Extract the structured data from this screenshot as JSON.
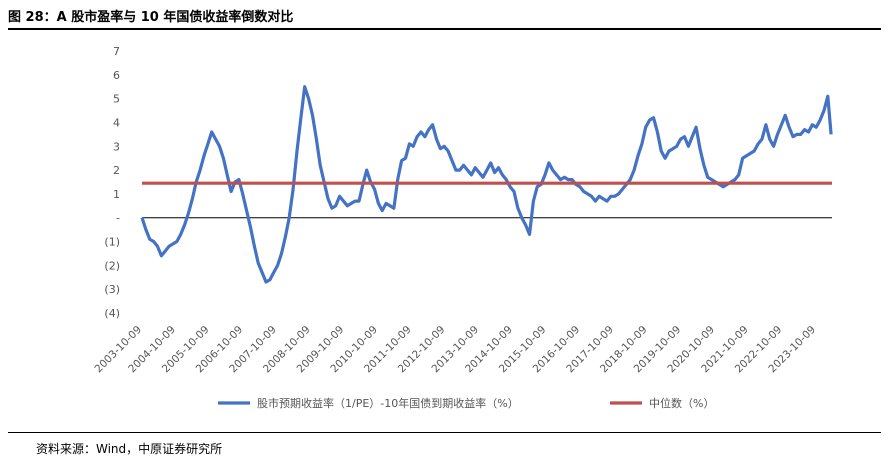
{
  "title": "图 28：A 股市盈率与 10 年国债收益率倒数对比",
  "source": "资料来源：Wind，中原证券研究所",
  "chart_data": {
    "type": "line",
    "title": "图 28：A 股市盈率与 10 年国债收益率倒数对比",
    "xlabel": "",
    "ylabel": "",
    "ylim": [
      -4,
      7
    ],
    "y_ticks": [
      7,
      6,
      5,
      4,
      3,
      2,
      1,
      0,
      -1,
      -2,
      -3,
      -4
    ],
    "y_tick_labels": [
      "7",
      "6",
      "5",
      "4",
      "3",
      "2",
      "1",
      "-",
      "(1)",
      "(2)",
      "(3)",
      "(4)"
    ],
    "x_tick_labels": [
      "2003-10-09",
      "2004-10-09",
      "2005-10-09",
      "2006-10-09",
      "2007-10-09",
      "2008-10-09",
      "2009-10-09",
      "2010-10-09",
      "2011-10-09",
      "2012-10-09",
      "2013-10-09",
      "2014-10-09",
      "2015-10-09",
      "2016-10-09",
      "2017-10-09",
      "2018-10-09",
      "2019-10-09",
      "2020-10-09",
      "2021-10-09",
      "2022-10-09",
      "2023-10-09"
    ],
    "xlim": [
      "2003-10-09",
      "2024-03-31"
    ],
    "legend_position": "bottom",
    "grid": false,
    "series": [
      {
        "name": "股市预期收益率（1/PE）-10年国债到期收益率（%）",
        "color": "#4472C4",
        "points": [
          [
            "2003-10-09",
            0.0
          ],
          [
            "2003-11-20",
            -0.5
          ],
          [
            "2004-01-01",
            -0.9
          ],
          [
            "2004-02-12",
            -1.0
          ],
          [
            "2004-03-25",
            -1.2
          ],
          [
            "2004-05-06",
            -1.6
          ],
          [
            "2004-06-17",
            -1.4
          ],
          [
            "2004-07-29",
            -1.2
          ],
          [
            "2004-09-09",
            -1.1
          ],
          [
            "2004-10-21",
            -1.0
          ],
          [
            "2004-12-02",
            -0.7
          ],
          [
            "2005-01-13",
            -0.3
          ],
          [
            "2005-02-24",
            0.2
          ],
          [
            "2005-04-07",
            0.8
          ],
          [
            "2005-05-19",
            1.5
          ],
          [
            "2005-06-30",
            2.0
          ],
          [
            "2005-08-11",
            2.6
          ],
          [
            "2005-09-22",
            3.1
          ],
          [
            "2005-11-03",
            3.6
          ],
          [
            "2005-12-15",
            3.3
          ],
          [
            "2006-01-26",
            3.0
          ],
          [
            "2006-03-09",
            2.5
          ],
          [
            "2006-04-20",
            1.8
          ],
          [
            "2006-06-01",
            1.1
          ],
          [
            "2006-07-13",
            1.5
          ],
          [
            "2006-08-24",
            1.6
          ],
          [
            "2006-10-05",
            1.0
          ],
          [
            "2006-11-16",
            0.3
          ],
          [
            "2006-12-28",
            -0.4
          ],
          [
            "2007-02-08",
            -1.2
          ],
          [
            "2007-03-22",
            -1.9
          ],
          [
            "2007-05-03",
            -2.3
          ],
          [
            "2007-06-14",
            -2.7
          ],
          [
            "2007-07-26",
            -2.6
          ],
          [
            "2007-09-06",
            -2.3
          ],
          [
            "2007-10-18",
            -2.0
          ],
          [
            "2007-11-29",
            -1.5
          ],
          [
            "2008-01-10",
            -0.8
          ],
          [
            "2008-02-21",
            0.0
          ],
          [
            "2008-04-03",
            1.2
          ],
          [
            "2008-05-15",
            2.8
          ],
          [
            "2008-06-26",
            4.2
          ],
          [
            "2008-08-07",
            5.5
          ],
          [
            "2008-09-18",
            5.0
          ],
          [
            "2008-10-30",
            4.3
          ],
          [
            "2008-12-11",
            3.3
          ],
          [
            "2009-01-22",
            2.2
          ],
          [
            "2009-03-05",
            1.5
          ],
          [
            "2009-04-16",
            0.8
          ],
          [
            "2009-05-28",
            0.4
          ],
          [
            "2009-07-09",
            0.5
          ],
          [
            "2009-08-20",
            0.9
          ],
          [
            "2009-10-01",
            0.7
          ],
          [
            "2009-11-12",
            0.5
          ],
          [
            "2009-12-24",
            0.6
          ],
          [
            "2010-02-04",
            0.7
          ],
          [
            "2010-03-18",
            0.7
          ],
          [
            "2010-04-29",
            1.4
          ],
          [
            "2010-06-10",
            2.0
          ],
          [
            "2010-07-22",
            1.5
          ],
          [
            "2010-09-02",
            1.2
          ],
          [
            "2010-10-14",
            0.6
          ],
          [
            "2010-11-25",
            0.3
          ],
          [
            "2011-01-06",
            0.6
          ],
          [
            "2011-02-17",
            0.5
          ],
          [
            "2011-03-31",
            0.4
          ],
          [
            "2011-05-12",
            1.6
          ],
          [
            "2011-06-23",
            2.4
          ],
          [
            "2011-08-04",
            2.5
          ],
          [
            "2011-09-15",
            3.1
          ],
          [
            "2011-10-27",
            3.0
          ],
          [
            "2011-12-08",
            3.4
          ],
          [
            "2012-01-19",
            3.6
          ],
          [
            "2012-03-01",
            3.4
          ],
          [
            "2012-04-12",
            3.7
          ],
          [
            "2012-05-24",
            3.9
          ],
          [
            "2012-07-05",
            3.3
          ],
          [
            "2012-08-16",
            2.9
          ],
          [
            "2012-09-27",
            3.0
          ],
          [
            "2012-11-08",
            2.8
          ],
          [
            "2012-12-20",
            2.4
          ],
          [
            "2013-01-31",
            2.0
          ],
          [
            "2013-03-14",
            2.0
          ],
          [
            "2013-04-25",
            2.2
          ],
          [
            "2013-06-06",
            2.0
          ],
          [
            "2013-07-18",
            1.8
          ],
          [
            "2013-08-29",
            2.1
          ],
          [
            "2013-10-10",
            1.9
          ],
          [
            "2013-11-21",
            1.7
          ],
          [
            "2014-01-02",
            2.0
          ],
          [
            "2014-02-13",
            2.3
          ],
          [
            "2014-03-27",
            1.9
          ],
          [
            "2014-05-08",
            2.1
          ],
          [
            "2014-06-19",
            1.8
          ],
          [
            "2014-07-31",
            1.6
          ],
          [
            "2014-09-11",
            1.3
          ],
          [
            "2014-10-23",
            1.1
          ],
          [
            "2014-12-04",
            0.4
          ],
          [
            "2015-01-15",
            0.0
          ],
          [
            "2015-02-26",
            -0.3
          ],
          [
            "2015-04-09",
            -0.7
          ],
          [
            "2015-05-21",
            0.7
          ],
          [
            "2015-07-02",
            1.3
          ],
          [
            "2015-08-13",
            1.4
          ],
          [
            "2015-09-24",
            1.8
          ],
          [
            "2015-11-05",
            2.3
          ],
          [
            "2015-12-17",
            2.0
          ],
          [
            "2016-01-28",
            1.8
          ],
          [
            "2016-03-10",
            1.6
          ],
          [
            "2016-04-21",
            1.7
          ],
          [
            "2016-06-02",
            1.6
          ],
          [
            "2016-07-14",
            1.6
          ],
          [
            "2016-08-25",
            1.4
          ],
          [
            "2016-10-06",
            1.3
          ],
          [
            "2016-11-17",
            1.1
          ],
          [
            "2016-12-29",
            1.0
          ],
          [
            "2017-02-09",
            0.9
          ],
          [
            "2017-03-23",
            0.7
          ],
          [
            "2017-05-04",
            0.9
          ],
          [
            "2017-06-15",
            0.8
          ],
          [
            "2017-07-27",
            0.7
          ],
          [
            "2017-09-07",
            0.9
          ],
          [
            "2017-10-19",
            0.9
          ],
          [
            "2017-11-30",
            1.0
          ],
          [
            "2018-01-11",
            1.2
          ],
          [
            "2018-02-22",
            1.4
          ],
          [
            "2018-04-05",
            1.6
          ],
          [
            "2018-05-17",
            2.0
          ],
          [
            "2018-06-28",
            2.6
          ],
          [
            "2018-08-09",
            3.1
          ],
          [
            "2018-09-20",
            3.8
          ],
          [
            "2018-11-01",
            4.1
          ],
          [
            "2018-12-13",
            4.2
          ],
          [
            "2019-01-24",
            3.6
          ],
          [
            "2019-03-07",
            2.8
          ],
          [
            "2019-04-18",
            2.5
          ],
          [
            "2019-05-30",
            2.8
          ],
          [
            "2019-07-11",
            2.9
          ],
          [
            "2019-08-22",
            3.0
          ],
          [
            "2019-10-03",
            3.3
          ],
          [
            "2019-11-14",
            3.4
          ],
          [
            "2019-12-26",
            3.0
          ],
          [
            "2020-02-06",
            3.4
          ],
          [
            "2020-03-19",
            3.8
          ],
          [
            "2020-04-30",
            2.9
          ],
          [
            "2020-06-11",
            2.2
          ],
          [
            "2020-07-23",
            1.7
          ],
          [
            "2020-09-03",
            1.6
          ],
          [
            "2020-10-15",
            1.5
          ],
          [
            "2020-11-26",
            1.4
          ],
          [
            "2021-01-07",
            1.3
          ],
          [
            "2021-02-18",
            1.4
          ],
          [
            "2021-04-01",
            1.5
          ],
          [
            "2021-05-13",
            1.6
          ],
          [
            "2021-06-24",
            1.8
          ],
          [
            "2021-08-05",
            2.5
          ],
          [
            "2021-09-16",
            2.6
          ],
          [
            "2021-10-28",
            2.7
          ],
          [
            "2021-12-09",
            2.8
          ],
          [
            "2022-01-20",
            3.1
          ],
          [
            "2022-03-03",
            3.3
          ],
          [
            "2022-04-14",
            3.9
          ],
          [
            "2022-05-26",
            3.3
          ],
          [
            "2022-07-07",
            3.0
          ],
          [
            "2022-08-18",
            3.5
          ],
          [
            "2022-09-29",
            3.9
          ],
          [
            "2022-11-10",
            4.3
          ],
          [
            "2022-12-22",
            3.8
          ],
          [
            "2023-02-02",
            3.4
          ],
          [
            "2023-03-16",
            3.5
          ],
          [
            "2023-04-27",
            3.5
          ],
          [
            "2023-06-08",
            3.7
          ],
          [
            "2023-07-20",
            3.6
          ],
          [
            "2023-08-31",
            3.9
          ],
          [
            "2023-10-12",
            3.8
          ],
          [
            "2023-11-23",
            4.1
          ],
          [
            "2024-01-04",
            4.5
          ],
          [
            "2024-02-15",
            5.1
          ],
          [
            "2024-03-21",
            3.5
          ]
        ]
      },
      {
        "name": "中位数（%）",
        "color": "#C0504D",
        "constant": 1.45
      }
    ]
  }
}
